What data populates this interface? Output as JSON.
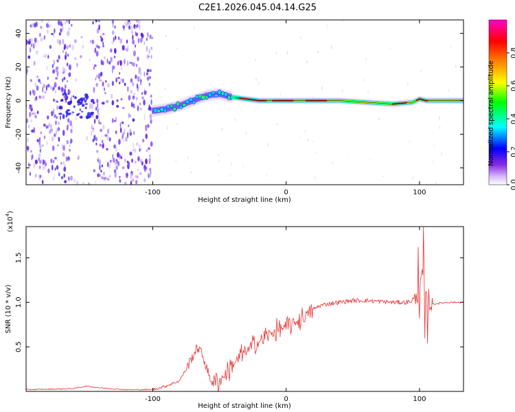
{
  "title": "C2E1.2026.045.04.14.G25",
  "chart_data": [
    {
      "type": "heatmap",
      "name": "spectrogram",
      "xlabel": "Height of straight line (km)",
      "ylabel": "Frequency (Hz)",
      "xlim": [
        -195,
        133
      ],
      "ylim": [
        -50,
        48
      ],
      "xticks": [
        -100,
        0,
        100
      ],
      "xtick_labels": [
        "-100",
        "0",
        "100"
      ],
      "yticks": [
        -40,
        -20,
        0,
        20,
        40
      ],
      "ytick_labels": [
        "-40",
        "-20",
        "0",
        "20",
        "40"
      ],
      "colorbar": {
        "label": "Normalized spectral amplitude",
        "range": [
          0,
          1
        ],
        "ticks": [
          0.0,
          0.2,
          0.4,
          0.6,
          0.8
        ],
        "tick_labels": [
          "0.0",
          "0.2",
          "0.4",
          "0.6",
          "0.8"
        ],
        "colormap": [
          "#ffffff",
          "#d6b8ff",
          "#8a2be2",
          "#0000ff",
          "#00ffff",
          "#00ff00",
          "#ffff00",
          "#ff8000",
          "#ff0000",
          "#ff00cc"
        ]
      },
      "ridge": {
        "x": [
          -100,
          -90,
          -80,
          -70,
          -60,
          -50,
          -45,
          -40,
          -30,
          -20,
          0,
          40,
          80,
          95,
          100,
          105,
          133
        ],
        "freq": [
          -6,
          -5,
          -3,
          0,
          3,
          4,
          3,
          2,
          1,
          0,
          0,
          0,
          -2,
          -1,
          1,
          0,
          0
        ]
      },
      "noise_regions": [
        {
          "x_range": [
            -195,
            -160
          ],
          "density": "high"
        },
        {
          "x_range": [
            -145,
            -100
          ],
          "density": "high"
        },
        {
          "x_range": [
            -160,
            -145
          ],
          "density": "low"
        }
      ]
    },
    {
      "type": "line",
      "name": "snr",
      "xlabel": "Height of straight line (km)",
      "ylabel": "SNR (10 * v/v)",
      "multiplier_label": "(x10",
      "multiplier_exp": "4",
      "multiplier_close": ")",
      "xlim": [
        -195,
        133
      ],
      "ylim": [
        0,
        1.85
      ],
      "xticks": [
        -100,
        0,
        100
      ],
      "xtick_labels": [
        "-100",
        "0",
        "100"
      ],
      "yticks": [
        0.5,
        1.0,
        1.5
      ],
      "ytick_labels": [
        "0.5",
        "1.0",
        "1.5"
      ],
      "color": "#e8312f",
      "envelope": {
        "x": [
          -195,
          -160,
          -150,
          -140,
          -120,
          -100,
          -90,
          -80,
          -75,
          -70,
          -66,
          -62,
          -58,
          -55,
          -50,
          -45,
          -40,
          -35,
          -30,
          -25,
          -20,
          -15,
          -10,
          -5,
          0,
          5,
          10,
          15,
          20,
          25,
          30,
          35,
          40,
          50,
          60,
          70,
          80,
          90,
          95,
          98,
          100,
          102,
          104,
          106,
          110,
          120,
          133
        ],
        "y": [
          0.02,
          0.03,
          0.06,
          0.04,
          0.02,
          0.02,
          0.06,
          0.12,
          0.25,
          0.4,
          0.5,
          0.38,
          0.18,
          0.1,
          0.12,
          0.2,
          0.3,
          0.38,
          0.45,
          0.5,
          0.56,
          0.62,
          0.66,
          0.7,
          0.72,
          0.76,
          0.8,
          0.86,
          0.92,
          0.96,
          0.98,
          0.99,
          1.0,
          1.02,
          1.02,
          1.01,
          1.0,
          1.0,
          1.02,
          1.05,
          1.1,
          1.35,
          1.2,
          0.95,
          0.98,
          1.0,
          1.0
        ]
      },
      "spikes": [
        {
          "x": 99,
          "y": 1.62
        },
        {
          "x": 100,
          "y": 0.82
        },
        {
          "x": 103,
          "y": 1.85
        },
        {
          "x": 104,
          "y": 0.6
        },
        {
          "x": 106,
          "y": 0.54
        },
        {
          "x": 107,
          "y": 1.15
        }
      ]
    }
  ]
}
